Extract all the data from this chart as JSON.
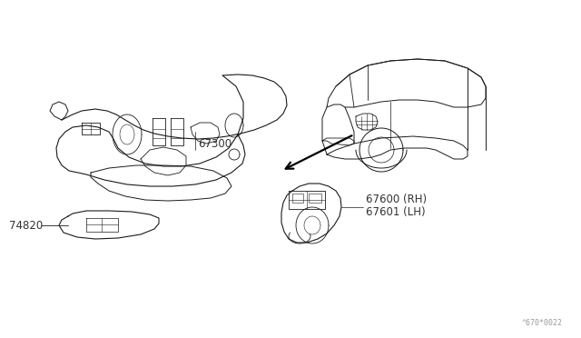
{
  "bg_color": "#ffffff",
  "line_color": "#1a1a1a",
  "label_color": "#333333",
  "watermark": "^670*0022",
  "label_texts": {
    "67300": "67300",
    "74820": "74820",
    "67600_rh": "67600 (RH)",
    "67601_lh": "67601 (LH)"
  },
  "fig_w": 6.4,
  "fig_h": 3.72
}
